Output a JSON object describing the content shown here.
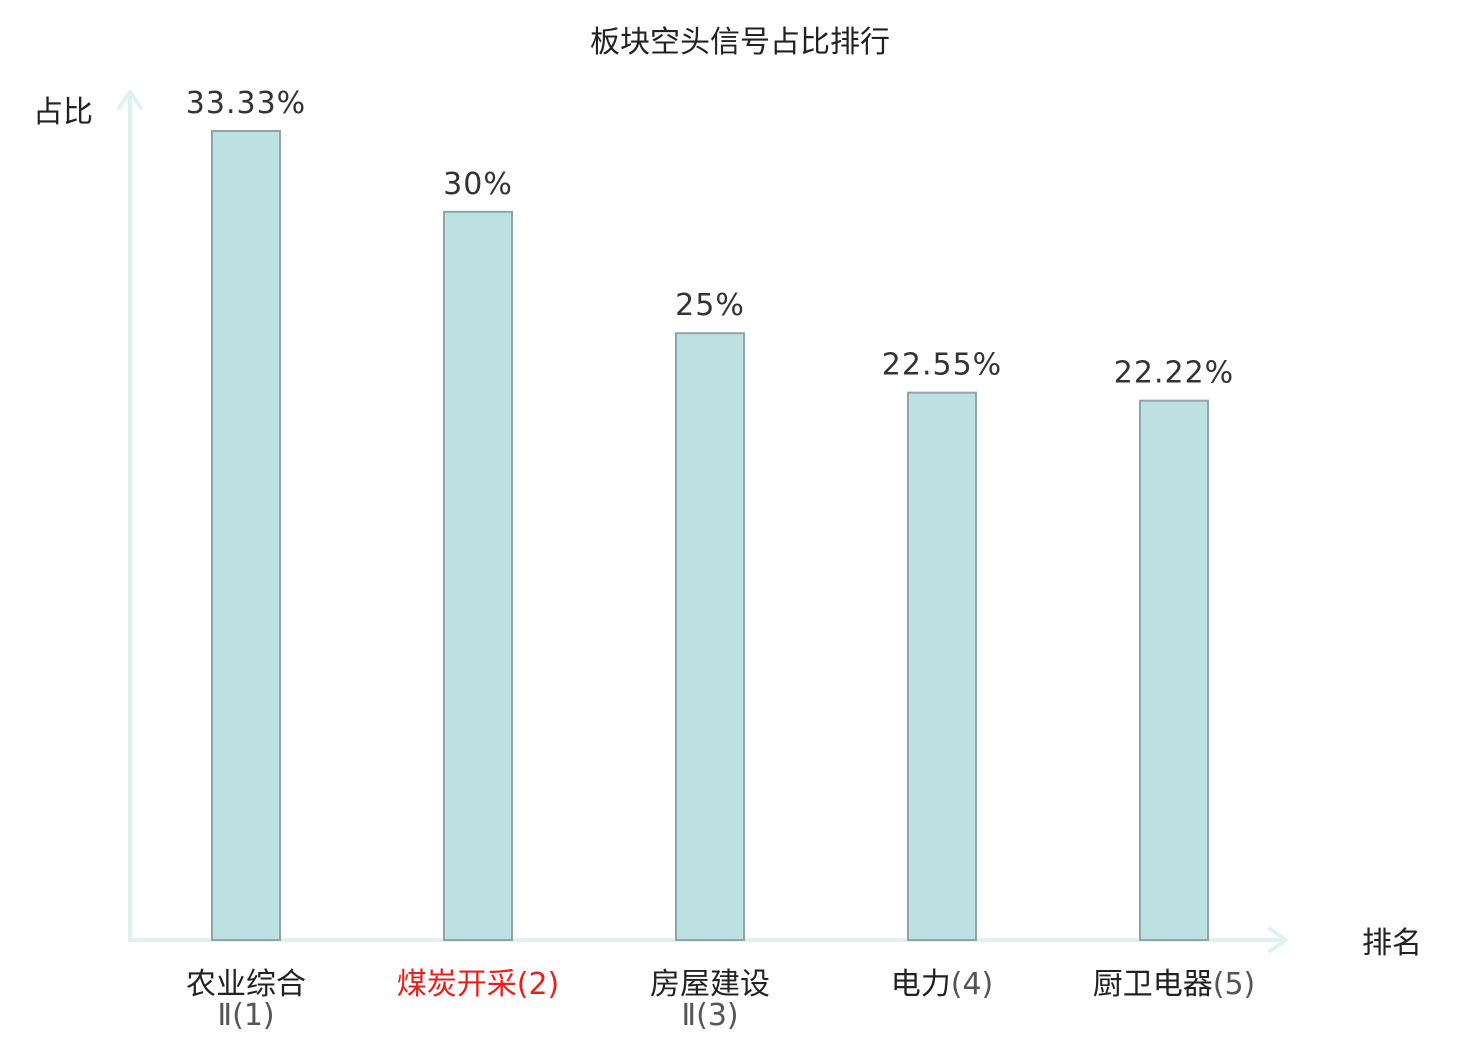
{
  "chart_data": {
    "type": "bar",
    "title": "板块空头信号占比排行",
    "ylabel": "占比",
    "xlabel": "排名",
    "ylim": [
      0,
      35
    ],
    "grid": false,
    "categories": [
      {
        "name": "农业综合",
        "rank": "Ⅱ(1)",
        "line1": "农业综合",
        "line1_suffix": "",
        "line2": "Ⅱ(1)",
        "highlight": false
      },
      {
        "name": "煤炭开采",
        "rank": "(2)",
        "line1": "煤炭开采",
        "line1_suffix": "(2)",
        "line2": "",
        "highlight": true
      },
      {
        "name": "房屋建设",
        "rank": "Ⅱ(3)",
        "line1": "房屋建设",
        "line1_suffix": "",
        "line2": "Ⅱ(3)",
        "highlight": false
      },
      {
        "name": "电力",
        "rank": "(4)",
        "line1": "电力",
        "line1_suffix": "(4)",
        "line2": "",
        "highlight": false
      },
      {
        "name": "厨卫电器",
        "rank": "(5)",
        "line1": "厨卫电器",
        "line1_suffix": "(5)",
        "line2": "",
        "highlight": false
      }
    ],
    "values": [
      33.33,
      30,
      25,
      22.55,
      22.22
    ],
    "value_labels": [
      "33.33%",
      "30%",
      "25%",
      "22.55%",
      "22.22%"
    ],
    "colors": {
      "bar_fill": "#bde0e2",
      "bar_stroke": "#8fa6a8",
      "axis": "#e0f2ef",
      "highlight_text": "#e8201c",
      "normal_text": "#222222"
    }
  }
}
